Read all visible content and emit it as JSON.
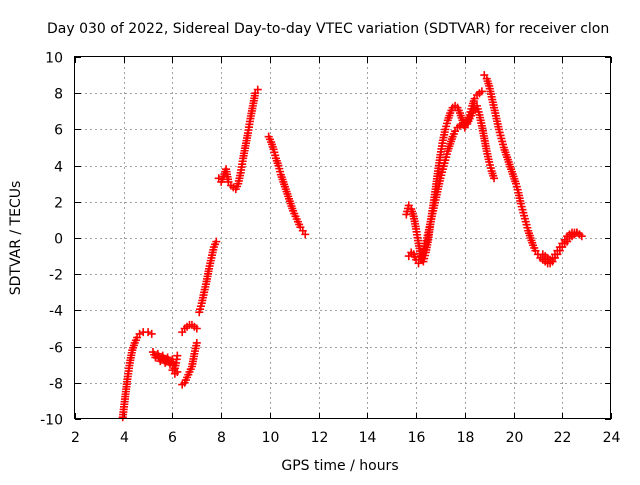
{
  "chart_data": {
    "type": "scatter",
    "title": "Day 030 of 2022, Sidereal Day-to-day VTEC variation (SDTVAR) for receiver clon",
    "xlabel": "GPS time / hours",
    "ylabel": "SDTVAR / TECUs",
    "xlim": [
      2,
      24
    ],
    "ylim": [
      -10,
      10
    ],
    "xticks": [
      "2",
      "4",
      "6",
      "8",
      "10",
      "12",
      "14",
      "16",
      "18",
      "20",
      "22",
      "24"
    ],
    "yticks": [
      "10",
      "8",
      "6",
      "4",
      "2",
      "0",
      "-2",
      "-4",
      "-6",
      "-8",
      "-10"
    ],
    "grid": true,
    "marker": "+",
    "series": [
      {
        "name": "segment-1",
        "color": "#ff0000",
        "x": [
          3.96,
          4.05,
          4.15,
          4.25,
          4.35,
          4.45,
          4.55,
          4.65,
          4.8,
          5.0,
          5.15
        ],
        "y": [
          -9.9,
          -8.9,
          -7.8,
          -6.9,
          -6.2,
          -5.8,
          -5.5,
          -5.3,
          -5.2,
          -5.2,
          -5.3
        ]
      },
      {
        "name": "segment-2",
        "color": "#ff0000",
        "x": [
          5.2,
          5.3,
          5.4,
          5.5,
          5.6,
          5.7,
          5.8,
          5.9,
          6.0,
          6.1,
          6.15,
          6.2
        ],
        "y": [
          -6.3,
          -6.6,
          -6.4,
          -6.8,
          -6.5,
          -6.9,
          -6.6,
          -7.0,
          -6.7,
          -7.2,
          -6.9,
          -6.5
        ]
      },
      {
        "name": "segment-3",
        "color": "#ff0000",
        "x": [
          6.0,
          6.1,
          6.2
        ],
        "y": [
          -7.3,
          -7.5,
          -7.4
        ]
      },
      {
        "name": "segment-4",
        "color": "#ff0000",
        "x": [
          6.4,
          6.5,
          6.6,
          6.7,
          6.8,
          6.9,
          7.0
        ],
        "y": [
          -8.1,
          -8.0,
          -7.7,
          -7.4,
          -7.1,
          -6.4,
          -5.8
        ]
      },
      {
        "name": "segment-5",
        "color": "#ff0000",
        "x": [
          6.4,
          6.5,
          6.6,
          6.7,
          6.8,
          6.9,
          7.0
        ],
        "y": [
          -5.2,
          -5.0,
          -4.9,
          -4.8,
          -4.8,
          -4.9,
          -5.0
        ]
      },
      {
        "name": "segment-6",
        "color": "#ff0000",
        "x": [
          7.1,
          7.2,
          7.3,
          7.4,
          7.5,
          7.6,
          7.7,
          7.8
        ],
        "y": [
          -4.1,
          -3.6,
          -3.0,
          -2.4,
          -1.7,
          -1.1,
          -0.5,
          -0.2
        ]
      },
      {
        "name": "segment-7",
        "color": "#ff0000",
        "x": [
          7.9,
          8.0,
          8.1,
          8.2,
          8.3,
          8.4,
          8.5,
          8.6,
          8.7,
          8.8,
          8.9,
          9.0,
          9.1,
          9.2,
          9.3,
          9.4,
          9.5
        ],
        "y": [
          3.3,
          3.1,
          3.4,
          3.8,
          3.1,
          2.9,
          2.8,
          2.7,
          3.0,
          3.6,
          4.4,
          5.1,
          5.8,
          6.6,
          7.3,
          8.0,
          8.2
        ]
      },
      {
        "name": "segment-8",
        "color": "#ff0000",
        "x": [
          9.95,
          10.05,
          10.15,
          10.25,
          10.35,
          10.45,
          10.55,
          10.65,
          10.75,
          10.85,
          10.95,
          11.05,
          11.15,
          11.25,
          11.35,
          11.45
        ],
        "y": [
          5.6,
          5.3,
          4.9,
          4.4,
          4.0,
          3.5,
          3.1,
          2.7,
          2.3,
          1.9,
          1.5,
          1.2,
          0.9,
          0.6,
          0.4,
          0.2
        ]
      },
      {
        "name": "segment-9",
        "color": "#ff0000",
        "x": [
          15.6,
          15.7,
          15.8,
          15.9,
          16.0,
          16.1,
          16.2,
          16.3,
          16.4,
          16.5,
          16.6,
          16.7,
          16.8,
          16.9,
          17.0,
          17.1,
          17.2,
          17.3,
          17.4,
          17.5,
          17.6,
          17.7,
          17.8,
          17.9,
          18.0,
          18.1,
          18.2,
          18.3,
          18.4,
          18.5,
          18.6,
          18.7,
          18.8,
          18.9,
          19.0,
          19.1,
          19.2
        ],
        "y": [
          1.3,
          1.8,
          1.6,
          1.2,
          0.5,
          -0.3,
          -1.0,
          -1.3,
          -0.8,
          -0.1,
          0.9,
          1.8,
          2.7,
          3.7,
          4.6,
          5.4,
          6.0,
          6.5,
          6.9,
          7.2,
          7.3,
          7.2,
          6.9,
          6.5,
          6.1,
          6.3,
          6.6,
          6.9,
          7.2,
          7.3,
          6.8,
          6.2,
          5.5,
          4.8,
          4.2,
          3.7,
          3.3
        ]
      },
      {
        "name": "segment-10",
        "color": "#ff0000",
        "x": [
          15.7,
          15.8,
          15.9,
          16.0,
          16.1,
          16.2,
          16.3,
          16.4,
          16.5,
          16.6,
          16.7,
          16.8,
          16.9,
          17.0,
          17.1,
          17.2,
          17.3,
          17.4,
          17.5,
          17.6,
          17.7,
          17.8,
          17.9,
          18.0,
          18.1,
          18.2,
          18.3,
          18.4,
          18.5,
          18.6,
          18.7
        ],
        "y": [
          -1.0,
          -0.8,
          -0.9,
          -1.2,
          -1.4,
          -1.2,
          -0.8,
          -0.3,
          0.3,
          0.9,
          1.5,
          2.1,
          2.7,
          3.3,
          3.8,
          4.3,
          4.8,
          5.2,
          5.6,
          5.9,
          6.1,
          6.2,
          6.3,
          6.2,
          6.4,
          6.8,
          7.3,
          7.7,
          7.9,
          8.0,
          8.1
        ]
      },
      {
        "name": "segment-11",
        "color": "#ff0000",
        "x": [
          18.8,
          18.9,
          19.0,
          19.1,
          19.2,
          19.3,
          19.4,
          19.5,
          19.6,
          19.7,
          19.8,
          19.9,
          20.0,
          20.1,
          20.2,
          20.3,
          20.4,
          20.5,
          20.6,
          20.7,
          20.8,
          20.9,
          21.0,
          21.1,
          21.2,
          21.3,
          21.4,
          21.5,
          21.6,
          21.7,
          21.8,
          21.9,
          22.0,
          22.1,
          22.2,
          22.3,
          22.4,
          22.5,
          22.6,
          22.7,
          22.8
        ],
        "y": [
          9.0,
          8.8,
          8.4,
          7.8,
          7.2,
          6.6,
          6.0,
          5.5,
          5.0,
          4.6,
          4.2,
          3.8,
          3.4,
          3.0,
          2.5,
          1.9,
          1.4,
          0.9,
          0.4,
          0.0,
          -0.4,
          -0.7,
          -0.9,
          -1.1,
          -1.2,
          -1.3,
          -1.4,
          -1.4,
          -1.3,
          -1.1,
          -0.9,
          -0.7,
          -0.5,
          -0.3,
          -0.2,
          0.0,
          0.1,
          0.2,
          0.3,
          0.2,
          0.1
        ]
      },
      {
        "name": "segment-12",
        "color": "#ff0000",
        "x": [
          21.2,
          21.3,
          21.4,
          21.5,
          21.6,
          21.7,
          21.8,
          21.9,
          22.0,
          22.1,
          22.2,
          22.3,
          22.4,
          22.5,
          22.6,
          22.7
        ],
        "y": [
          -0.9,
          -1.0,
          -1.1,
          -1.2,
          -1.1,
          -0.9,
          -0.7,
          -0.5,
          -0.3,
          -0.1,
          0.1,
          0.2,
          0.3,
          0.3,
          0.3,
          0.2
        ]
      }
    ]
  }
}
